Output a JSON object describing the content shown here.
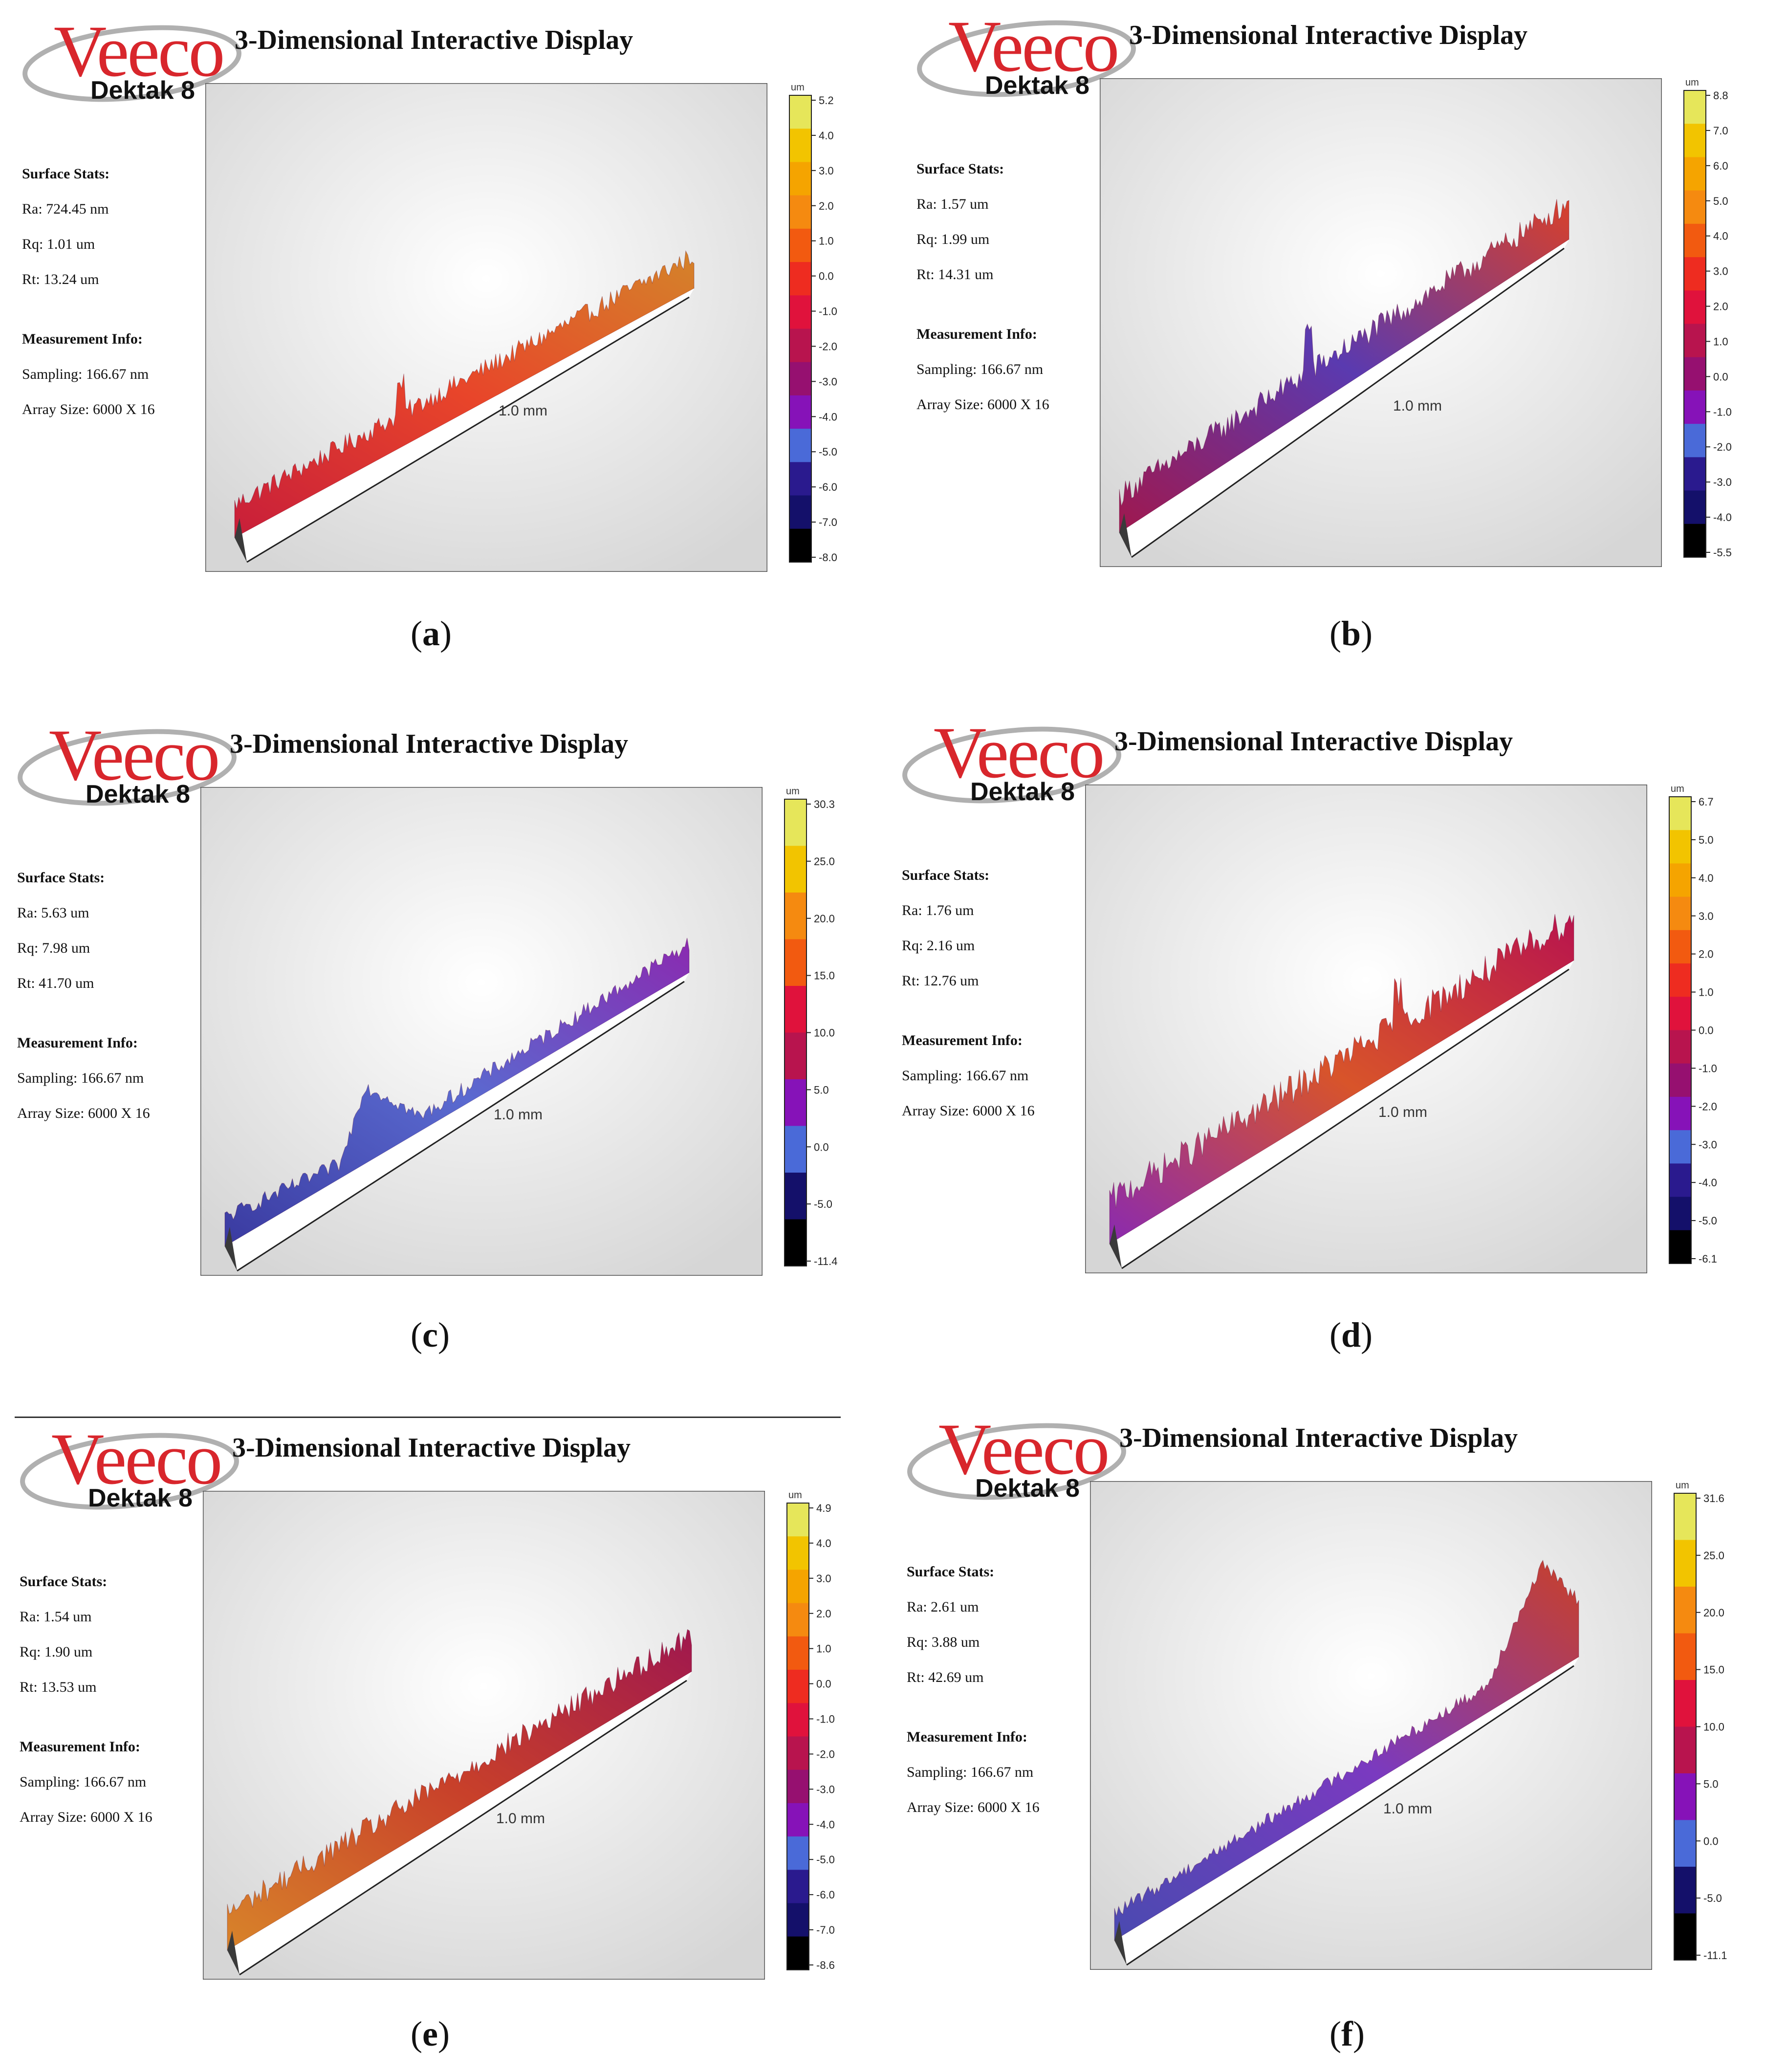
{
  "chart_data": [
    {
      "type": "3d-surface",
      "label": "a",
      "brand": "Veeco",
      "model": "Dektak 8",
      "title": "3-Dimensional Interactive Display",
      "surface_stats_heading": "Surface Stats:",
      "ra": "Ra: 724.45 nm",
      "rq": "Rq: 1.01 um",
      "rt": "Rt: 13.24 um",
      "measurement_heading": "Measurement Info:",
      "sampling": "Sampling: 166.67 nm",
      "array_size": "Array Size: 6000 X 16",
      "axis_label": "1.0 mm",
      "colorbar_unit": "um",
      "colorbar_ticks": [
        "5.2",
        "4.0",
        "3.0",
        "2.0",
        "1.0",
        "0.0",
        "-1.0",
        "-2.0",
        "-3.0",
        "-4.0",
        "-5.0",
        "-6.0",
        "-7.0",
        "-8.0"
      ],
      "colorbar_colors": [
        "#e6e65a",
        "#f2c400",
        "#f5a400",
        "#f58a10",
        "#f25a10",
        "#ee2c20",
        "#e0123c",
        "#b8144e",
        "#961070",
        "#8612b8",
        "#4a6ad8",
        "#2a1a8e",
        "#14106a",
        "#000000"
      ],
      "profile_colors": [
        "#c81e3a",
        "#e8452a",
        "#d4832a"
      ]
    },
    {
      "type": "3d-surface",
      "label": "b",
      "brand": "Veeco",
      "model": "Dektak 8",
      "title": "3-Dimensional Interactive Display",
      "surface_stats_heading": "Surface Stats:",
      "ra": "Ra: 1.57 um",
      "rq": "Rq: 1.99 um",
      "rt": "Rt: 14.31 um",
      "measurement_heading": "Measurement Info:",
      "sampling": "Sampling: 166.67 nm",
      "array_size": "Array Size: 6000 X 16",
      "axis_label": "1.0 mm",
      "colorbar_unit": "um",
      "colorbar_ticks": [
        "8.8",
        "7.0",
        "6.0",
        "5.0",
        "4.0",
        "3.0",
        "2.0",
        "1.0",
        "0.0",
        "-1.0",
        "-2.0",
        "-3.0",
        "-4.0",
        "-5.5"
      ],
      "colorbar_colors": [
        "#e6e65a",
        "#f2c400",
        "#f5a400",
        "#f58a10",
        "#f25a10",
        "#ee2c20",
        "#e0123c",
        "#b8144e",
        "#961070",
        "#8612b8",
        "#4a6ad8",
        "#2a1a8e",
        "#14106a",
        "#000000"
      ],
      "profile_colors": [
        "#a0184e",
        "#5a3ab0",
        "#d8402a"
      ]
    },
    {
      "type": "3d-surface",
      "label": "c",
      "brand": "Veeco",
      "model": "Dektak 8",
      "title": "3-Dimensional Interactive Display",
      "surface_stats_heading": "Surface Stats:",
      "ra": "Ra: 5.63 um",
      "rq": "Rq: 7.98 um",
      "rt": "Rt: 41.70 um",
      "measurement_heading": "Measurement Info:",
      "sampling": "Sampling: 166.67 nm",
      "array_size": "Array Size: 6000 X 16",
      "axis_label": "1.0 mm",
      "colorbar_unit": "um",
      "colorbar_ticks": [
        "30.3",
        "25.0",
        "20.0",
        "15.0",
        "10.0",
        "5.0",
        "0.0",
        "-5.0",
        "-11.4"
      ],
      "colorbar_colors": [
        "#e6e65a",
        "#f2c400",
        "#f58a10",
        "#f25a10",
        "#e0123c",
        "#b8144e",
        "#8612b8",
        "#4a6ad8",
        "#14106a",
        "#000000"
      ],
      "profile_colors": [
        "#3a3aa0",
        "#5a6ad0",
        "#8a2ab0"
      ]
    },
    {
      "type": "3d-surface",
      "label": "d",
      "brand": "Veeco",
      "model": "Dektak 8",
      "title": "3-Dimensional Interactive Display",
      "surface_stats_heading": "Surface Stats:",
      "ra": "Ra: 1.76 um",
      "rq": "Rq: 2.16 um",
      "rt": "Rt: 12.76 um",
      "measurement_heading": "Measurement Info:",
      "sampling": "Sampling: 166.67 nm",
      "array_size": "Array Size: 6000 X 16",
      "axis_label": "1.0 mm",
      "colorbar_unit": "um",
      "colorbar_ticks": [
        "6.7",
        "5.0",
        "4.0",
        "3.0",
        "2.0",
        "1.0",
        "0.0",
        "-1.0",
        "-2.0",
        "-3.0",
        "-4.0",
        "-5.0",
        "-6.1"
      ],
      "colorbar_colors": [
        "#e6e65a",
        "#f2c400",
        "#f5a400",
        "#f58a10",
        "#f25a10",
        "#ee2c20",
        "#e0123c",
        "#b8144e",
        "#961070",
        "#8612b8",
        "#4a6ad8",
        "#2a1a8e",
        "#14106a",
        "#000000"
      ],
      "profile_colors": [
        "#8a2ab0",
        "#d8542a",
        "#b8144e"
      ]
    },
    {
      "type": "3d-surface",
      "label": "e",
      "brand": "Veeco",
      "model": "Dektak 8",
      "title": "3-Dimensional Interactive Display",
      "surface_stats_heading": "Surface Stats:",
      "ra": "Ra: 1.54 um",
      "rq": "Rq: 1.90 um",
      "rt": "Rt: 13.53 um",
      "measurement_heading": "Measurement Info:",
      "sampling": "Sampling: 166.67 nm",
      "array_size": "Array Size: 6000 X 16",
      "axis_label": "1.0 mm",
      "colorbar_unit": "um",
      "colorbar_ticks": [
        "4.9",
        "4.0",
        "3.0",
        "2.0",
        "1.0",
        "0.0",
        "-1.0",
        "-2.0",
        "-3.0",
        "-4.0",
        "-5.0",
        "-6.0",
        "-7.0",
        "-8.6"
      ],
      "colorbar_colors": [
        "#e6e65a",
        "#f2c400",
        "#f5a400",
        "#f58a10",
        "#f25a10",
        "#ee2c20",
        "#e0123c",
        "#b8144e",
        "#961070",
        "#8612b8",
        "#4a6ad8",
        "#2a1a8e",
        "#14106a",
        "#000000"
      ],
      "profile_colors": [
        "#d8842a",
        "#c8402a",
        "#a0184e"
      ]
    },
    {
      "type": "3d-surface",
      "label": "f",
      "brand": "Veeco",
      "model": "Dektak 8",
      "title": "3-Dimensional Interactive Display",
      "surface_stats_heading": "Surface Stats:",
      "ra": "Ra: 2.61 um",
      "rq": "Rq: 3.88 um",
      "rt": "Rt: 42.69 um",
      "measurement_heading": "Measurement Info:",
      "sampling": "Sampling: 166.67 nm",
      "array_size": "Array Size: 6000 X 16",
      "axis_label": "1.0 mm",
      "colorbar_unit": "um",
      "colorbar_ticks": [
        "31.6",
        "25.0",
        "20.0",
        "15.0",
        "10.0",
        "5.0",
        "0.0",
        "-5.0",
        "-11.1"
      ],
      "colorbar_colors": [
        "#e6e65a",
        "#f2c400",
        "#f58a10",
        "#f25a10",
        "#e0123c",
        "#b8144e",
        "#8612b8",
        "#4a6ad8",
        "#14106a",
        "#000000"
      ],
      "profile_colors": [
        "#4a4ab0",
        "#7a3ac0",
        "#c8402a"
      ]
    }
  ]
}
